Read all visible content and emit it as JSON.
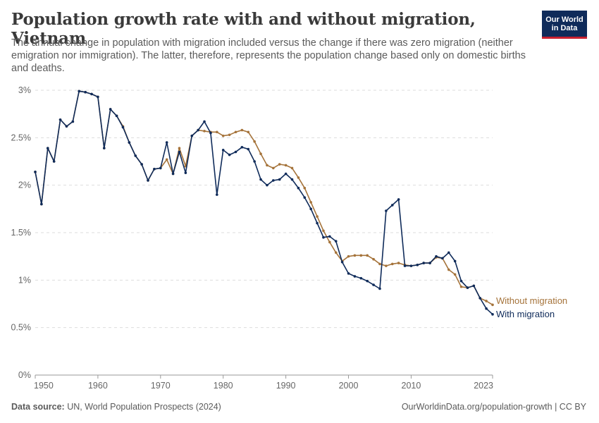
{
  "header": {
    "title": "Population growth rate with and without migration, Vietnam",
    "subtitle": "The annual change in population with migration included versus the change if there was zero migration (neither emigration nor immigration). The latter, therefore, represents the population change based only on domestic births and deaths."
  },
  "logo": {
    "line1": "Our World",
    "line2": "in Data",
    "bg_color": "#0f2b5a",
    "accent_color": "#c8202f"
  },
  "footer": {
    "source_label": "Data source:",
    "source_text": "UN, World Population Prospects (2024)",
    "link_text": "OurWorldinData.org/population-growth | CC BY"
  },
  "chart_data": {
    "type": "line",
    "title": "Population growth rate with and without migration, Vietnam",
    "xlabel": "",
    "ylabel": "",
    "xlim": [
      1950,
      2023
    ],
    "ylim": [
      0,
      3
    ],
    "x_ticks": [
      1950,
      1960,
      1970,
      1980,
      1990,
      2000,
      2010,
      2023
    ],
    "y_ticks": [
      0,
      0.5,
      1,
      1.5,
      2,
      2.5,
      3
    ],
    "y_tick_labels": [
      "0%",
      "0.5%",
      "1%",
      "1.5%",
      "2%",
      "2.5%",
      "3%"
    ],
    "grid": "horizontal dashed",
    "legend": "end-of-line labels at right",
    "x": [
      1950,
      1951,
      1952,
      1953,
      1954,
      1955,
      1956,
      1957,
      1958,
      1959,
      1960,
      1961,
      1962,
      1963,
      1964,
      1965,
      1966,
      1967,
      1968,
      1969,
      1970,
      1971,
      1972,
      1973,
      1974,
      1975,
      1976,
      1977,
      1978,
      1979,
      1980,
      1981,
      1982,
      1983,
      1984,
      1985,
      1986,
      1987,
      1988,
      1989,
      1990,
      1991,
      1992,
      1993,
      1994,
      1995,
      1996,
      1997,
      1998,
      1999,
      2000,
      2001,
      2002,
      2003,
      2004,
      2005,
      2006,
      2007,
      2008,
      2009,
      2010,
      2011,
      2012,
      2013,
      2014,
      2015,
      2016,
      2017,
      2018,
      2019,
      2020,
      2021,
      2022,
      2023
    ],
    "series": [
      {
        "name": "Without migration",
        "color": "#a5733a",
        "values": [
          2.14,
          1.8,
          2.39,
          2.25,
          2.69,
          2.62,
          2.67,
          2.99,
          2.98,
          2.96,
          2.93,
          2.39,
          2.8,
          2.73,
          2.62,
          2.45,
          2.31,
          2.22,
          2.05,
          2.17,
          2.18,
          2.27,
          2.12,
          2.39,
          2.2,
          2.52,
          2.58,
          2.57,
          2.56,
          2.56,
          2.52,
          2.53,
          2.56,
          2.58,
          2.56,
          2.46,
          2.33,
          2.21,
          2.18,
          2.22,
          2.21,
          2.18,
          2.08,
          1.97,
          1.82,
          1.67,
          1.52,
          1.4,
          1.29,
          1.2,
          1.25,
          1.26,
          1.26,
          1.26,
          1.22,
          1.17,
          1.15,
          1.17,
          1.18,
          1.16,
          1.15,
          1.16,
          1.18,
          1.18,
          1.24,
          1.23,
          1.11,
          1.06,
          0.93,
          0.92,
          0.94,
          0.81,
          0.78,
          0.74
        ]
      },
      {
        "name": "With migration",
        "color": "#0f2b5a",
        "values": [
          2.14,
          1.8,
          2.39,
          2.25,
          2.69,
          2.62,
          2.67,
          2.99,
          2.98,
          2.96,
          2.93,
          2.39,
          2.8,
          2.73,
          2.61,
          2.45,
          2.31,
          2.22,
          2.05,
          2.17,
          2.18,
          2.45,
          2.12,
          2.35,
          2.13,
          2.52,
          2.58,
          2.67,
          2.55,
          1.9,
          2.37,
          2.32,
          2.35,
          2.4,
          2.38,
          2.25,
          2.06,
          2.0,
          2.05,
          2.06,
          2.12,
          2.06,
          1.97,
          1.87,
          1.75,
          1.6,
          1.45,
          1.46,
          1.41,
          1.19,
          1.07,
          1.04,
          1.02,
          0.99,
          0.95,
          0.91,
          1.73,
          1.79,
          1.85,
          1.15,
          1.15,
          1.16,
          1.18,
          1.18,
          1.25,
          1.23,
          1.29,
          1.2,
          0.99,
          0.92,
          0.94,
          0.81,
          0.7,
          0.64
        ]
      }
    ]
  }
}
